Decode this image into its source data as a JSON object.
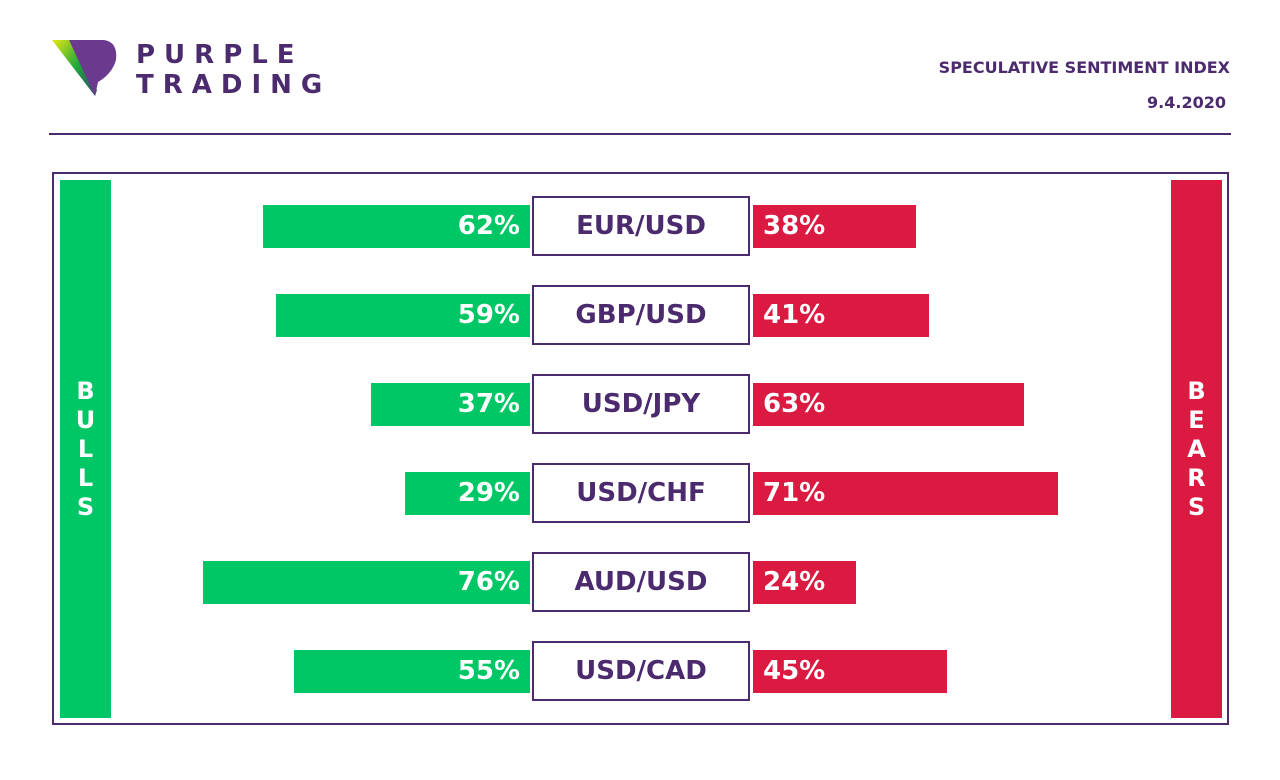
{
  "header": {
    "brand_line1": "PURPLE",
    "brand_line2": "TRADING",
    "title": "SPECULATIVE SENTIMENT INDEX",
    "date": "9.4.2020"
  },
  "chart_data": {
    "type": "bar",
    "title": "SPECULATIVE SENTIMENT INDEX",
    "left_label": "BULLS",
    "right_label": "BEARS",
    "categories": [
      "EUR/USD",
      "GBP/USD",
      "USD/JPY",
      "USD/CHF",
      "AUD/USD",
      "USD/CAD"
    ],
    "series": [
      {
        "name": "BULLS",
        "color": "#00c766",
        "values": [
          62,
          59,
          37,
          29,
          76,
          55
        ]
      },
      {
        "name": "BEARS",
        "color": "#da1a40",
        "values": [
          38,
          41,
          63,
          71,
          24,
          45
        ]
      }
    ],
    "unit": "%"
  }
}
